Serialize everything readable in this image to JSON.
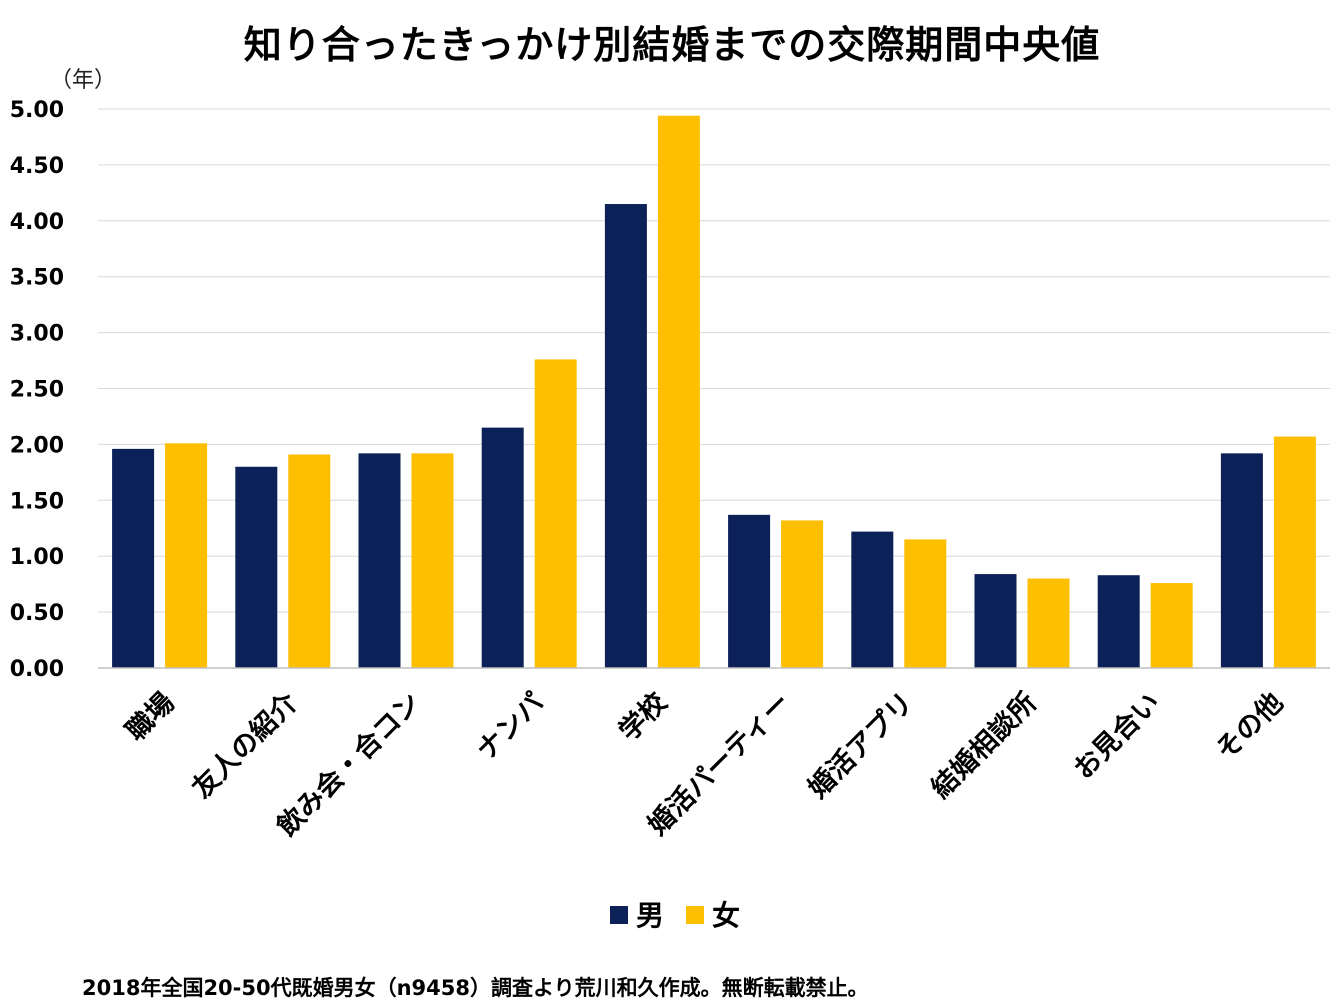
{
  "chart_data": {
    "type": "bar",
    "title": "知り合ったきっかけ別結婚までの交際期間中央値",
    "ylabel": "（年）",
    "xlabel": "",
    "ylim": [
      0,
      5
    ],
    "yticks": [
      "0.00",
      "0.50",
      "1.00",
      "1.50",
      "2.00",
      "2.50",
      "3.00",
      "3.50",
      "4.00",
      "4.50",
      "5.00"
    ],
    "grid": true,
    "legend_position": "bottom-center",
    "categories": [
      "職場",
      "友人の紹介",
      "飲み会・合コン",
      "ナンパ",
      "学校",
      "婚活パーティー",
      "婚活アプリ",
      "結婚相談所",
      "お見合い",
      "その他"
    ],
    "series": [
      {
        "name": "男",
        "color": "#0d2159",
        "values": [
          1.96,
          1.8,
          1.92,
          2.15,
          4.15,
          1.37,
          1.22,
          0.84,
          0.83,
          1.92
        ]
      },
      {
        "name": "女",
        "color": "#fdbf00",
        "values": [
          2.01,
          1.91,
          1.92,
          2.76,
          4.94,
          1.32,
          1.15,
          0.8,
          0.76,
          2.07
        ]
      }
    ]
  },
  "footer": {
    "source": "2018年全国20-50代既婚男女（n9458）調査より荒川和久作成。無断転載禁止。"
  }
}
